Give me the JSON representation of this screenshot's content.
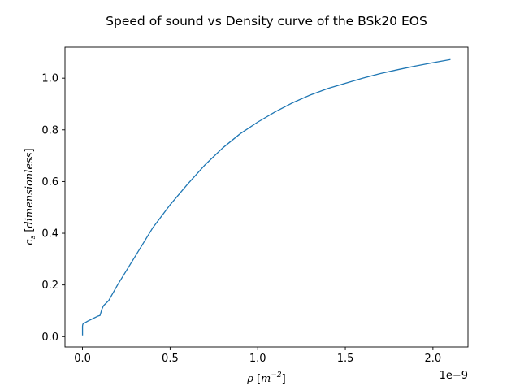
{
  "chart_data": {
    "type": "line",
    "title": "Speed of sound vs Density curve of the BSk20 EOS",
    "xlabel": {
      "symbol": "ρ",
      "bracket_open": "[",
      "unit_base": "m",
      "unit_exp": "−2",
      "bracket_close": "]"
    },
    "ylabel": {
      "symbol": "c",
      "subscript": "s",
      "bracket_open": "[",
      "unit": "dimensionless",
      "bracket_close": "]"
    },
    "x_offset_text": "1e−9",
    "xlim": [
      -1e-10,
      2.2e-09
    ],
    "ylim": [
      -0.04,
      1.12
    ],
    "x_ticks": [
      {
        "value": 0.0,
        "label": "0.0"
      },
      {
        "value": 5e-10,
        "label": "0.5"
      },
      {
        "value": 1e-09,
        "label": "1.0"
      },
      {
        "value": 1.5e-09,
        "label": "1.5"
      },
      {
        "value": 2e-09,
        "label": "2.0"
      }
    ],
    "y_ticks": [
      {
        "value": 0.0,
        "label": "0.0"
      },
      {
        "value": 0.2,
        "label": "0.2"
      },
      {
        "value": 0.4,
        "label": "0.4"
      },
      {
        "value": 0.6,
        "label": "0.6"
      },
      {
        "value": 0.8,
        "label": "0.8"
      },
      {
        "value": 1.0,
        "label": "1.0"
      }
    ],
    "grid": false,
    "color": "#1f77b4",
    "series": [
      {
        "x": [
          0.0,
          0.0,
          1e-12,
          2e-12,
          5e-12,
          1e-11,
          3e-11,
          6e-11,
          9e-11,
          1e-10,
          1.1e-10,
          1.2e-10,
          1.5e-10,
          2e-10,
          3e-10,
          4e-10,
          5e-10,
          6e-10,
          7e-10,
          8e-10,
          9e-10,
          1e-09,
          1.1e-09,
          1.2e-09,
          1.3e-09,
          1.4e-09,
          1.5e-09,
          1.6e-09,
          1.7e-09,
          1.8e-09,
          1.9e-09,
          2e-09,
          2.1e-09
        ],
        "y": [
          0.005,
          0.04,
          0.045,
          0.048,
          0.05,
          0.052,
          0.06,
          0.07,
          0.08,
          0.082,
          0.105,
          0.12,
          0.14,
          0.2,
          0.31,
          0.42,
          0.51,
          0.59,
          0.665,
          0.73,
          0.785,
          0.83,
          0.87,
          0.905,
          0.935,
          0.96,
          0.98,
          1.0,
          1.018,
          1.033,
          1.047,
          1.06,
          1.072
        ]
      }
    ]
  }
}
